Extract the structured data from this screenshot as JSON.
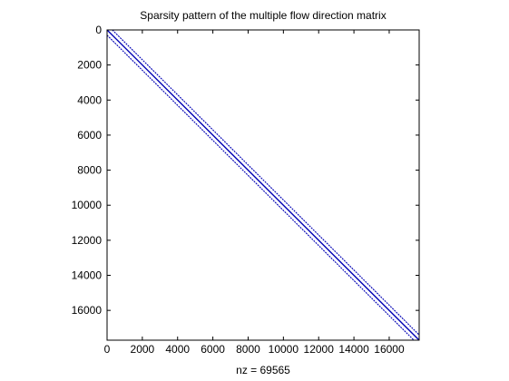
{
  "chart_data": {
    "type": "spy",
    "title": "Sparsity pattern of the multiple flow direction matrix",
    "xlabel": "nz = 69565",
    "ylabel": "",
    "matrix_size": 17700,
    "nnz": 69565,
    "xlim": [
      0,
      17700
    ],
    "ylim": [
      0,
      17700
    ],
    "y_reversed": true,
    "xticks": [
      0,
      2000,
      4000,
      6000,
      8000,
      10000,
      12000,
      14000,
      16000
    ],
    "yticks": [
      0,
      2000,
      4000,
      6000,
      8000,
      10000,
      12000,
      14000,
      16000
    ],
    "band_offsets": [
      -300,
      0,
      300
    ],
    "marker_color": "#0000b4",
    "grid": false
  }
}
